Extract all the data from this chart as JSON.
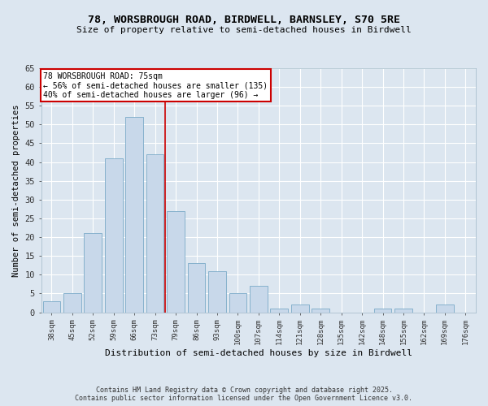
{
  "title_line1": "78, WORSBROUGH ROAD, BIRDWELL, BARNSLEY, S70 5RE",
  "title_line2": "Size of property relative to semi-detached houses in Birdwell",
  "xlabel": "Distribution of semi-detached houses by size in Birdwell",
  "ylabel": "Number of semi-detached properties",
  "bar_labels": [
    "38sqm",
    "45sqm",
    "52sqm",
    "59sqm",
    "66sqm",
    "73sqm",
    "79sqm",
    "86sqm",
    "93sqm",
    "100sqm",
    "107sqm",
    "114sqm",
    "121sqm",
    "128sqm",
    "135sqm",
    "142sqm",
    "148sqm",
    "155sqm",
    "162sqm",
    "169sqm",
    "176sqm"
  ],
  "bar_values": [
    3,
    5,
    21,
    41,
    52,
    42,
    27,
    13,
    11,
    5,
    7,
    1,
    2,
    1,
    0,
    0,
    1,
    1,
    0,
    2,
    0
  ],
  "bar_color": "#c8d8ea",
  "bar_edge_color": "#7aaac8",
  "bg_color": "#dce6f0",
  "property_line_x": 5.5,
  "annotation_line1": "78 WORSBROUGH ROAD: 75sqm",
  "annotation_line2": "← 56% of semi-detached houses are smaller (135)",
  "annotation_line3": "40% of semi-detached houses are larger (96) →",
  "vline_color": "#cc0000",
  "annotation_box_color": "#cc0000",
  "ylim": [
    0,
    65
  ],
  "yticks": [
    0,
    5,
    10,
    15,
    20,
    25,
    30,
    35,
    40,
    45,
    50,
    55,
    60,
    65
  ],
  "footnote_line1": "Contains HM Land Registry data © Crown copyright and database right 2025.",
  "footnote_line2": "Contains public sector information licensed under the Open Government Licence v3.0."
}
